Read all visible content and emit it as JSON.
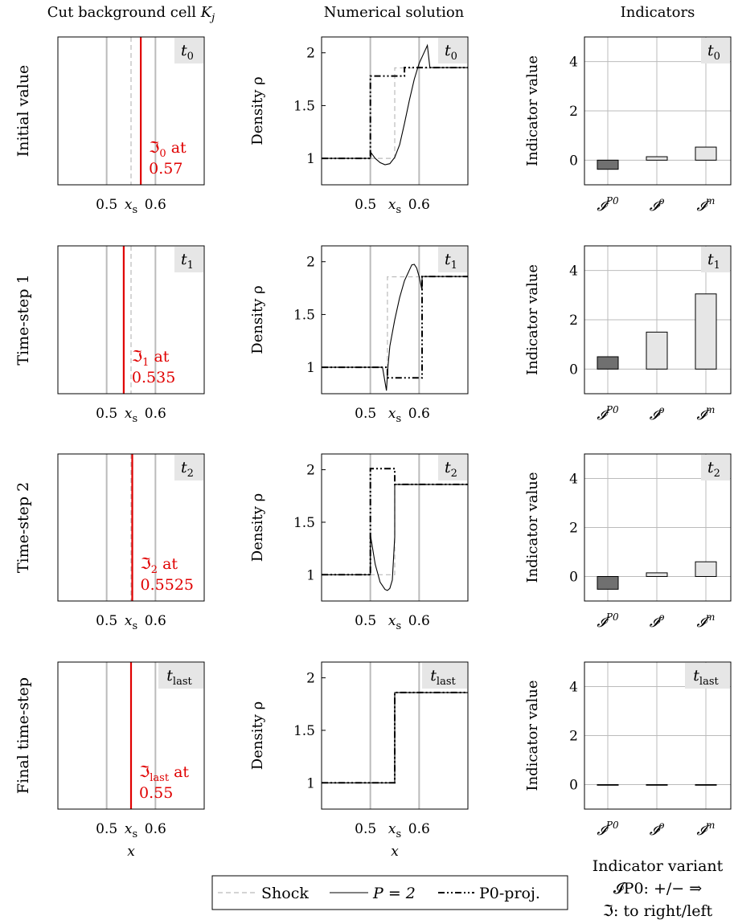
{
  "columns": {
    "left": {
      "title": "Cut background cell ",
      "title_sym": "K",
      "title_sub": "j"
    },
    "middle": {
      "title": "Numerical solution"
    },
    "right": {
      "title": "Indicators"
    }
  },
  "rows": [
    {
      "label": "Initial value",
      "time_base": "t",
      "time_sub": "0",
      "anno_sym": "ℑ",
      "anno_sub": "0",
      "anno_at": " at",
      "anno_value": "0.57"
    },
    {
      "label": "Time-step 1",
      "time_base": "t",
      "time_sub": "1",
      "anno_sym": "ℑ",
      "anno_sub": "1",
      "anno_at": " at",
      "anno_value": "0.535"
    },
    {
      "label": "Time-step 2",
      "time_base": "t",
      "time_sub": "2",
      "anno_sym": "ℑ",
      "anno_sub": "2",
      "anno_at": " at",
      "anno_value": "0.5525"
    },
    {
      "label": "Final time-step",
      "time_base": "t",
      "time_sub": "last",
      "anno_sym": "ℑ",
      "anno_sub": "last",
      "anno_at": " at",
      "anno_value": "0.55"
    }
  ],
  "axes": {
    "cell_xticks": [
      "0.5",
      "0.6"
    ],
    "xs_label": "x",
    "xs_sub": "s",
    "x_label": "x",
    "density_label": "Density ρ",
    "density_yticks": [
      "1",
      "1.5",
      "2"
    ],
    "indicator_label": "Indicator value",
    "indicator_yticks": [
      "0",
      "2",
      "4"
    ],
    "indicator_xticks": [
      {
        "base": "𝓘",
        "sup": "P0"
      },
      {
        "base": "𝓘",
        "sup": "ρ"
      },
      {
        "base": "𝓘",
        "sup": "m"
      }
    ]
  },
  "legend": {
    "shock": "Shock",
    "p2": "P = 2",
    "p0": "P0-proj."
  },
  "indicator_note": {
    "line1": "Indicator variant",
    "line2": "𝓘P0: +/− ⇒",
    "line3": "ℑ: to right/left"
  },
  "colors": {
    "grid": "#bbbbbb",
    "shock": "#bbbbbb",
    "interface": "#e00000",
    "bar_p0": "#707070",
    "bar_other": "#e6e6e6",
    "tag_bg": "#e6e6e6"
  },
  "chart_data": [
    {
      "type": "line",
      "panel": "cut background cell",
      "x_range": [
        0.4,
        0.7
      ],
      "grid_x": [
        0.5,
        0.6
      ],
      "shock_x": 0.55,
      "interface_positions": [
        0.57,
        0.535,
        0.5525,
        0.55
      ]
    },
    {
      "type": "line",
      "panel": "numerical solution",
      "x_range": [
        0.4,
        0.7
      ],
      "ylim": [
        0.75,
        2.15
      ],
      "grid_x": [
        0.5,
        0.6
      ],
      "series": [
        {
          "name": "Shock",
          "rows": [
            [
              [
                0.4,
                1
              ],
              [
                0.55,
                1
              ],
              [
                0.55,
                1.857
              ],
              [
                0.7,
                1.857
              ]
            ],
            [
              [
                0.4,
                1
              ],
              [
                0.535,
                1
              ],
              [
                0.535,
                1.857
              ],
              [
                0.7,
                1.857
              ]
            ],
            [
              [
                0.4,
                1
              ],
              [
                0.55,
                1
              ],
              [
                0.55,
                1.857
              ],
              [
                0.7,
                1.857
              ]
            ],
            [
              [
                0.4,
                1
              ],
              [
                0.55,
                1
              ],
              [
                0.55,
                1.857
              ],
              [
                0.7,
                1.857
              ]
            ]
          ]
        },
        {
          "name": "P = 2",
          "rows": [
            [
              [
                0.4,
                1
              ],
              [
                0.5,
                1
              ],
              [
                0.502,
                1.05
              ],
              [
                0.51,
                1.0
              ],
              [
                0.52,
                0.96
              ],
              [
                0.53,
                0.94
              ],
              [
                0.54,
                0.95
              ],
              [
                0.55,
                1.01
              ],
              [
                0.56,
                1.13
              ],
              [
                0.57,
                1.33
              ],
              [
                0.58,
                1.55
              ],
              [
                0.59,
                1.75
              ],
              [
                0.6,
                1.9
              ],
              [
                0.61,
                2.0
              ],
              [
                0.617,
                2.07
              ],
              [
                0.622,
                1.86
              ],
              [
                0.7,
                1.86
              ]
            ],
            [
              [
                0.4,
                1
              ],
              [
                0.525,
                1
              ],
              [
                0.533,
                0.78
              ],
              [
                0.536,
                1.0
              ],
              [
                0.54,
                1.2
              ],
              [
                0.55,
                1.45
              ],
              [
                0.56,
                1.66
              ],
              [
                0.57,
                1.82
              ],
              [
                0.58,
                1.92
              ],
              [
                0.585,
                1.97
              ],
              [
                0.59,
                1.975
              ],
              [
                0.595,
                1.94
              ],
              [
                0.6,
                1.86
              ],
              [
                0.606,
                1.73
              ],
              [
                0.606,
                1.86
              ],
              [
                0.7,
                1.86
              ]
            ],
            [
              [
                0.4,
                1
              ],
              [
                0.5,
                1
              ],
              [
                0.5,
                1.38
              ],
              [
                0.51,
                1.1
              ],
              [
                0.52,
                0.93
              ],
              [
                0.53,
                0.86
              ],
              [
                0.535,
                0.85
              ],
              [
                0.54,
                0.87
              ],
              [
                0.545,
                0.95
              ],
              [
                0.55,
                1.36
              ],
              [
                0.55,
                1.86
              ],
              [
                0.7,
                1.86
              ]
            ],
            [
              [
                0.4,
                1
              ],
              [
                0.55,
                1
              ],
              [
                0.55,
                1.86
              ],
              [
                0.7,
                1.86
              ]
            ]
          ]
        },
        {
          "name": "P0-proj.",
          "rows": [
            [
              [
                0.4,
                1
              ],
              [
                0.5,
                1
              ],
              [
                0.5,
                1.78
              ],
              [
                0.57,
                1.78
              ],
              [
                0.57,
                1.86
              ],
              [
                0.7,
                1.86
              ]
            ],
            [
              [
                0.4,
                1
              ],
              [
                0.535,
                1
              ],
              [
                0.535,
                0.9
              ],
              [
                0.606,
                0.9
              ],
              [
                0.606,
                1.86
              ],
              [
                0.7,
                1.86
              ]
            ],
            [
              [
                0.4,
                1
              ],
              [
                0.5,
                1
              ],
              [
                0.5,
                2.01
              ],
              [
                0.55,
                2.01
              ],
              [
                0.55,
                1.86
              ],
              [
                0.7,
                1.86
              ]
            ],
            [
              [
                0.4,
                1
              ],
              [
                0.55,
                1
              ],
              [
                0.55,
                1.86
              ],
              [
                0.7,
                1.86
              ]
            ]
          ]
        }
      ]
    },
    {
      "type": "bar",
      "panel": "indicators",
      "categories": [
        "I^P0",
        "I^rho",
        "I^m"
      ],
      "ylim": [
        -1,
        5
      ],
      "grid_y": [
        0,
        2,
        4
      ],
      "series": [
        {
          "rows": [
            [
              -0.37,
              0.14,
              0.53
            ],
            [
              0.5,
              1.5,
              3.05
            ],
            [
              -0.52,
              0.15,
              0.6
            ],
            [
              0,
              0,
              0
            ]
          ]
        }
      ]
    }
  ]
}
